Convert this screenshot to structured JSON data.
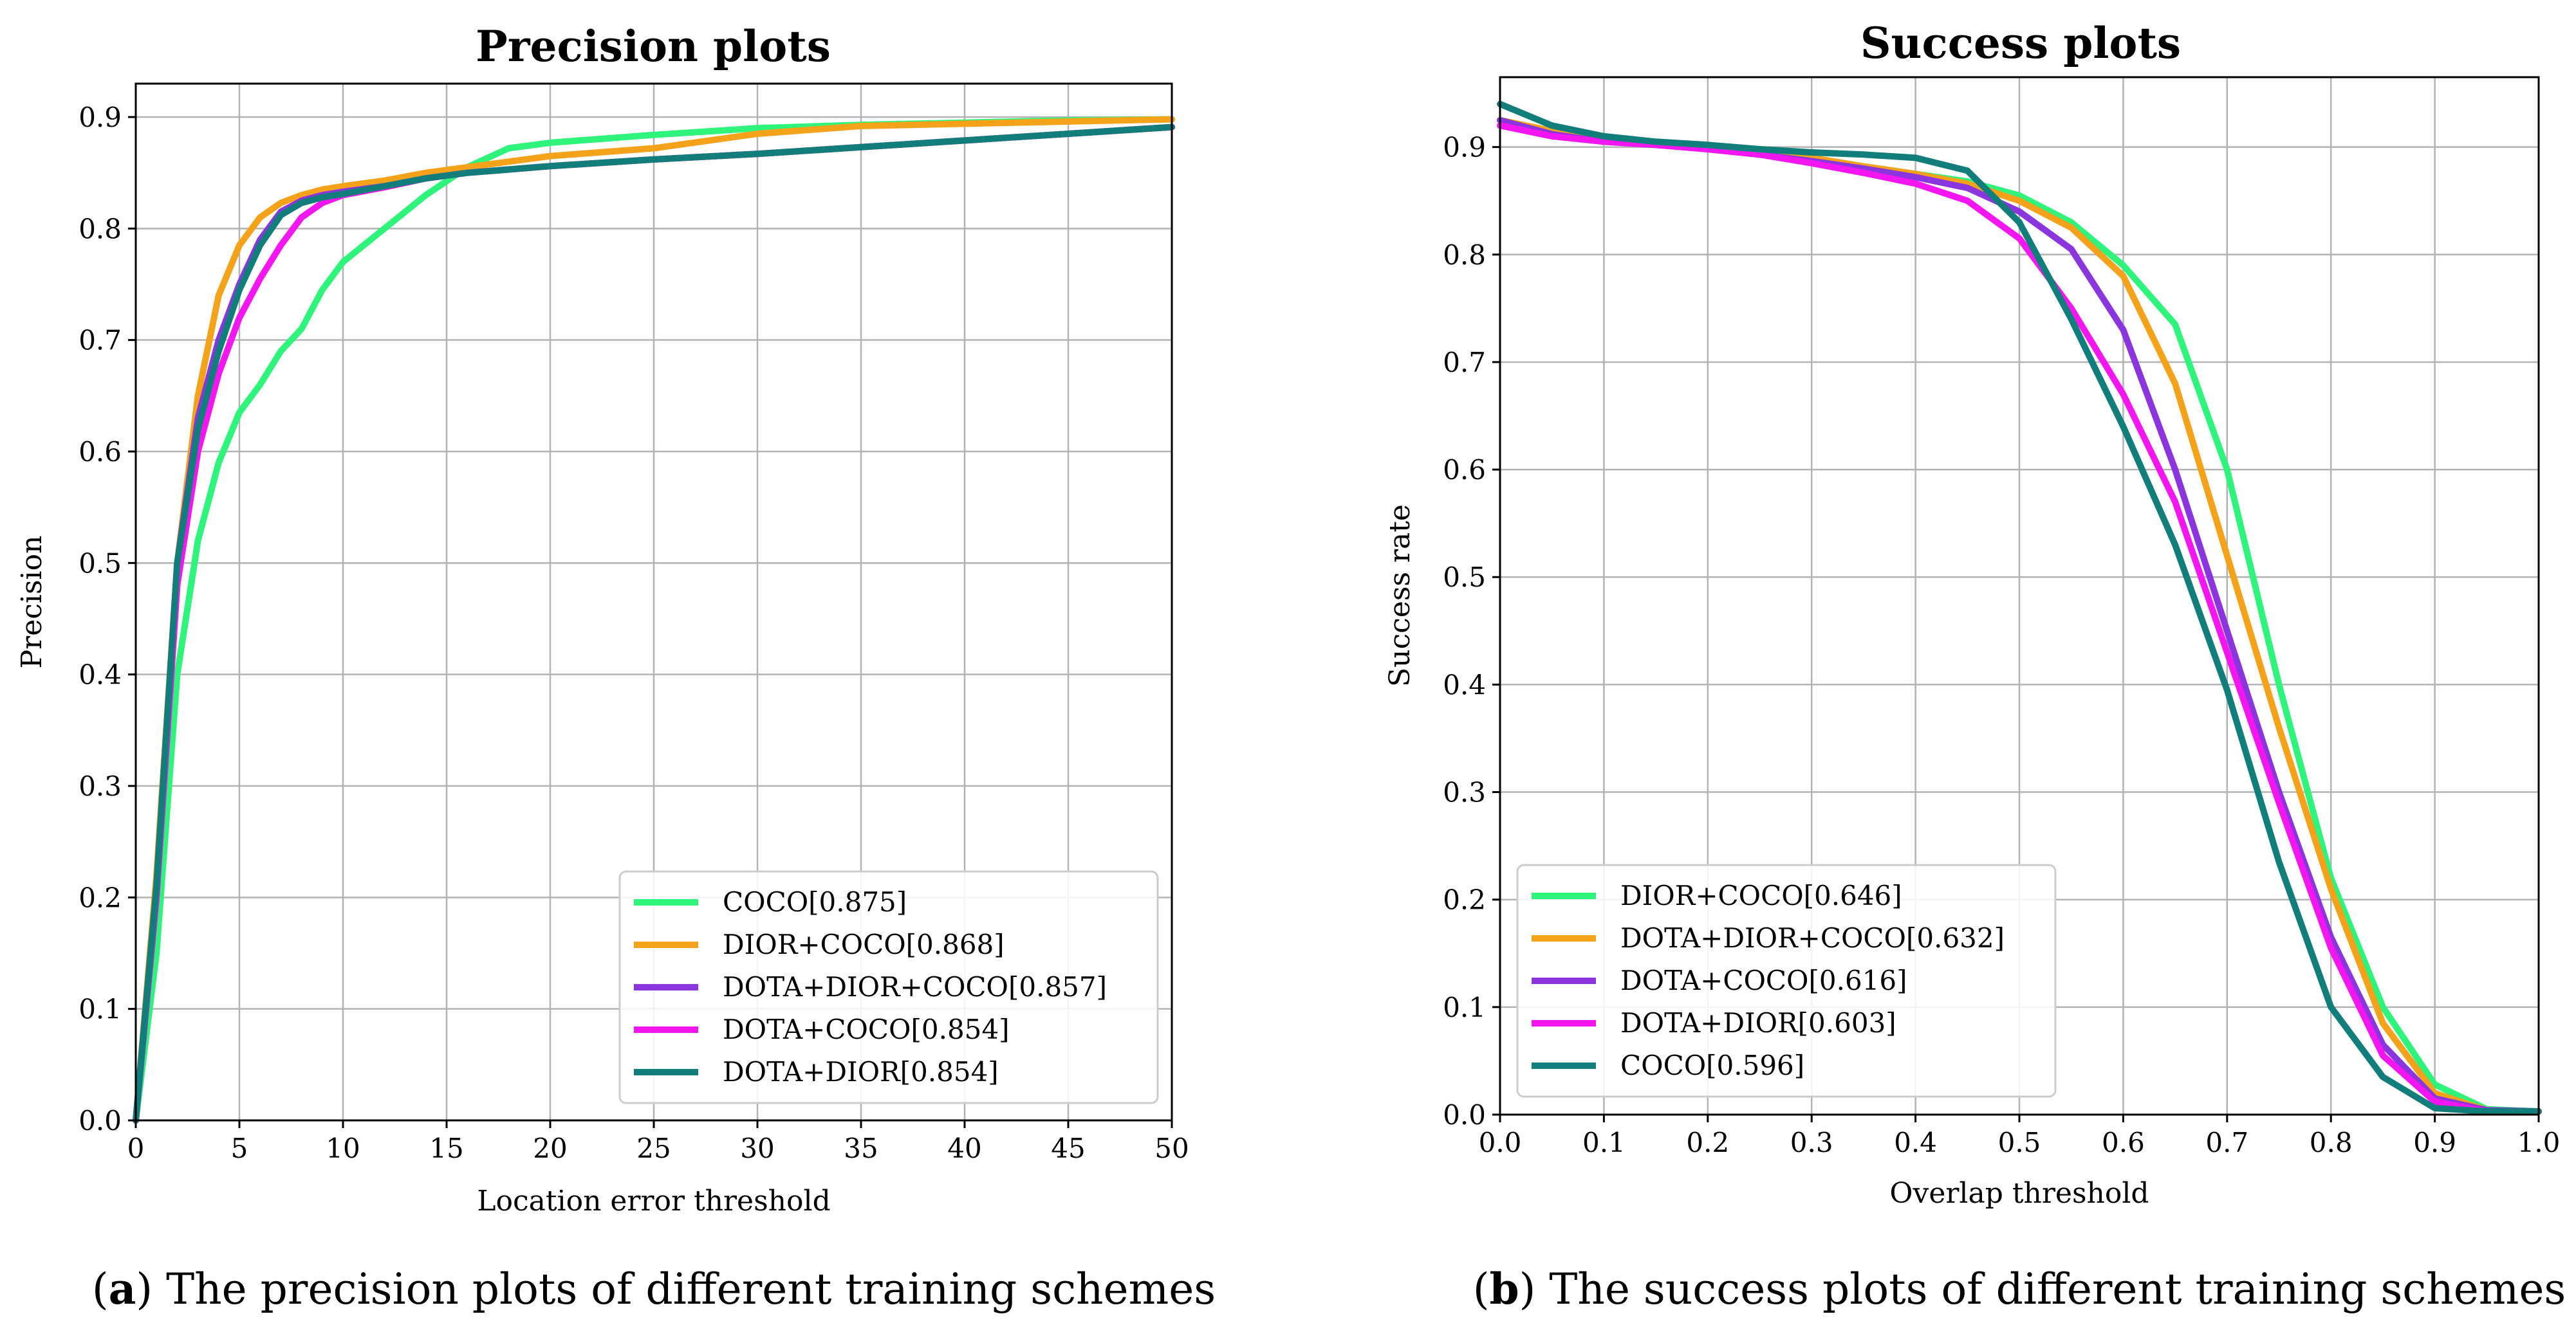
{
  "chart_data": [
    {
      "type": "line",
      "title": "Precision plots",
      "xlabel": "Location error threshold",
      "ylabel": "Precision",
      "xlim": [
        0,
        50
      ],
      "ylim": [
        0,
        0.93
      ],
      "xticks": [
        0,
        5,
        10,
        15,
        20,
        25,
        30,
        35,
        40,
        45,
        50
      ],
      "yticks": [
        0.0,
        0.1,
        0.2,
        0.3,
        0.4,
        0.5,
        0.6,
        0.7,
        0.8,
        0.9
      ],
      "xtick_labels": [
        "0",
        "5",
        "10",
        "15",
        "20",
        "25",
        "30",
        "35",
        "40",
        "45",
        "50"
      ],
      "ytick_labels": [
        "0.0",
        "0.1",
        "0.2",
        "0.3",
        "0.4",
        "0.5",
        "0.6",
        "0.7",
        "0.8",
        "0.9"
      ],
      "grid": true,
      "legend_position": "lower-right",
      "caption_label": "a",
      "caption_text": " The precision plots of different training schemes",
      "series": [
        {
          "name": "COCO[0.875]",
          "color": "#2ef47b",
          "x": [
            0,
            1,
            2,
            3,
            4,
            5,
            6,
            7,
            8,
            9,
            10,
            12,
            14,
            16,
            18,
            20,
            25,
            30,
            35,
            40,
            45,
            50
          ],
          "y": [
            0.0,
            0.15,
            0.4,
            0.52,
            0.59,
            0.635,
            0.66,
            0.69,
            0.71,
            0.745,
            0.77,
            0.8,
            0.83,
            0.855,
            0.872,
            0.877,
            0.884,
            0.89,
            0.893,
            0.895,
            0.897,
            0.898
          ]
        },
        {
          "name": "DIOR+COCO[0.868]",
          "color": "#f5a21b",
          "x": [
            0,
            1,
            2,
            3,
            4,
            5,
            6,
            7,
            8,
            9,
            10,
            12,
            14,
            16,
            18,
            20,
            25,
            30,
            35,
            40,
            45,
            50
          ],
          "y": [
            0.0,
            0.22,
            0.5,
            0.65,
            0.74,
            0.785,
            0.81,
            0.823,
            0.83,
            0.835,
            0.838,
            0.843,
            0.85,
            0.855,
            0.86,
            0.865,
            0.872,
            0.885,
            0.892,
            0.894,
            0.896,
            0.898
          ]
        },
        {
          "name": "DOTA+DIOR+COCO[0.857]",
          "color": "#8a35de",
          "x": [
            0,
            1,
            2,
            3,
            4,
            5,
            6,
            7,
            8,
            9,
            10,
            12,
            14,
            16,
            18,
            20,
            25,
            30,
            35,
            40,
            45,
            50
          ],
          "y": [
            0.0,
            0.21,
            0.5,
            0.63,
            0.7,
            0.75,
            0.79,
            0.815,
            0.825,
            0.83,
            0.833,
            0.838,
            0.845,
            0.85,
            0.853,
            0.856,
            0.862,
            0.867,
            0.873,
            0.879,
            0.885,
            0.891
          ]
        },
        {
          "name": "DOTA+COCO[0.854]",
          "color": "#f416f0",
          "x": [
            0,
            1,
            2,
            3,
            4,
            5,
            6,
            7,
            8,
            9,
            10,
            12,
            14,
            16,
            18,
            20,
            25,
            30,
            35,
            40,
            45,
            50
          ],
          "y": [
            0.0,
            0.2,
            0.48,
            0.6,
            0.67,
            0.72,
            0.755,
            0.785,
            0.81,
            0.823,
            0.83,
            0.837,
            0.845,
            0.85,
            0.853,
            0.856,
            0.862,
            0.867,
            0.873,
            0.879,
            0.885,
            0.891
          ]
        },
        {
          "name": "DOTA+DIOR[0.854]",
          "color": "#127e7b",
          "x": [
            0,
            1,
            2,
            3,
            4,
            5,
            6,
            7,
            8,
            9,
            10,
            12,
            14,
            16,
            18,
            20,
            25,
            30,
            35,
            40,
            45,
            50
          ],
          "y": [
            0.0,
            0.21,
            0.5,
            0.62,
            0.69,
            0.745,
            0.785,
            0.812,
            0.823,
            0.828,
            0.831,
            0.838,
            0.845,
            0.85,
            0.853,
            0.856,
            0.862,
            0.867,
            0.873,
            0.879,
            0.885,
            0.891
          ]
        }
      ]
    },
    {
      "type": "line",
      "title": "Success plots",
      "xlabel": "Overlap threshold",
      "ylabel": "Success rate",
      "xlim": [
        0,
        1
      ],
      "ylim": [
        0,
        0.965
      ],
      "xticks": [
        0.0,
        0.1,
        0.2,
        0.3,
        0.4,
        0.5,
        0.6,
        0.7,
        0.8,
        0.9,
        1.0
      ],
      "yticks": [
        0.0,
        0.1,
        0.2,
        0.3,
        0.4,
        0.5,
        0.6,
        0.7,
        0.8,
        0.9
      ],
      "xtick_labels": [
        "0.0",
        "0.1",
        "0.2",
        "0.3",
        "0.4",
        "0.5",
        "0.6",
        "0.7",
        "0.8",
        "0.9",
        "1.0"
      ],
      "ytick_labels": [
        "0.0",
        "0.1",
        "0.2",
        "0.3",
        "0.4",
        "0.5",
        "0.6",
        "0.7",
        "0.8",
        "0.9"
      ],
      "grid": true,
      "legend_position": "lower-left",
      "caption_label": "b",
      "caption_text": " The success plots of different training schemes",
      "series": [
        {
          "name": "DIOR+COCO[0.646]",
          "color": "#2ef47b",
          "x": [
            0.0,
            0.05,
            0.1,
            0.15,
            0.2,
            0.25,
            0.3,
            0.35,
            0.4,
            0.45,
            0.5,
            0.55,
            0.6,
            0.65,
            0.7,
            0.75,
            0.8,
            0.85,
            0.9,
            0.95,
            1.0
          ],
          "y": [
            0.925,
            0.915,
            0.908,
            0.904,
            0.9,
            0.895,
            0.89,
            0.882,
            0.875,
            0.868,
            0.855,
            0.83,
            0.79,
            0.735,
            0.6,
            0.4,
            0.22,
            0.1,
            0.028,
            0.005,
            0.003
          ]
        },
        {
          "name": "DOTA+DIOR+COCO[0.632]",
          "color": "#f5a21b",
          "x": [
            0.0,
            0.05,
            0.1,
            0.15,
            0.2,
            0.25,
            0.3,
            0.35,
            0.4,
            0.45,
            0.5,
            0.55,
            0.6,
            0.65,
            0.7,
            0.75,
            0.8,
            0.85,
            0.9,
            0.95,
            1.0
          ],
          "y": [
            0.925,
            0.915,
            0.908,
            0.904,
            0.9,
            0.895,
            0.89,
            0.882,
            0.875,
            0.866,
            0.85,
            0.825,
            0.78,
            0.68,
            0.52,
            0.36,
            0.21,
            0.085,
            0.02,
            0.004,
            0.003
          ]
        },
        {
          "name": "DOTA+COCO[0.616]",
          "color": "#8a35de",
          "x": [
            0.0,
            0.05,
            0.1,
            0.15,
            0.2,
            0.25,
            0.3,
            0.35,
            0.4,
            0.45,
            0.5,
            0.55,
            0.6,
            0.65,
            0.7,
            0.75,
            0.8,
            0.85,
            0.9,
            0.95,
            1.0
          ],
          "y": [
            0.925,
            0.912,
            0.905,
            0.902,
            0.898,
            0.893,
            0.887,
            0.88,
            0.872,
            0.862,
            0.84,
            0.805,
            0.73,
            0.6,
            0.45,
            0.3,
            0.165,
            0.065,
            0.015,
            0.004,
            0.003
          ]
        },
        {
          "name": "DOTA+DIOR[0.603]",
          "color": "#f416f0",
          "x": [
            0.0,
            0.05,
            0.1,
            0.15,
            0.2,
            0.25,
            0.3,
            0.35,
            0.4,
            0.45,
            0.5,
            0.55,
            0.6,
            0.65,
            0.7,
            0.75,
            0.8,
            0.85,
            0.9,
            0.95,
            1.0
          ],
          "y": [
            0.92,
            0.91,
            0.905,
            0.902,
            0.898,
            0.893,
            0.885,
            0.876,
            0.866,
            0.85,
            0.815,
            0.75,
            0.67,
            0.57,
            0.43,
            0.29,
            0.155,
            0.055,
            0.012,
            0.003,
            0.003
          ]
        },
        {
          "name": "COCO[0.596]",
          "color": "#127e7b",
          "x": [
            0.0,
            0.05,
            0.1,
            0.15,
            0.2,
            0.25,
            0.3,
            0.35,
            0.4,
            0.45,
            0.5,
            0.55,
            0.6,
            0.65,
            0.7,
            0.75,
            0.8,
            0.85,
            0.9,
            0.95,
            1.0
          ],
          "y": [
            0.94,
            0.92,
            0.91,
            0.905,
            0.902,
            0.898,
            0.895,
            0.893,
            0.89,
            0.878,
            0.83,
            0.74,
            0.64,
            0.53,
            0.395,
            0.235,
            0.1,
            0.035,
            0.006,
            0.003,
            0.003
          ]
        }
      ]
    }
  ]
}
